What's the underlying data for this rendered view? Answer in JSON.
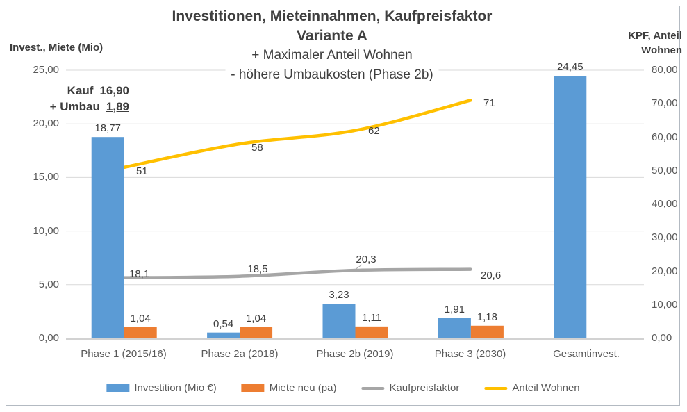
{
  "title": {
    "line1": "Investitionen, Mieteinnahmen, Kaufpreisfaktor",
    "line2": "Variante A",
    "line3": "+ Maximaler Anteil Wohnen",
    "line4": "- höhere Umbaukosten (Phase 2b)"
  },
  "annotation": {
    "line1_label": "Kauf",
    "line1_value": "16,90",
    "line2_label": "+ Umbau",
    "line2_value": "1,89"
  },
  "legend": [
    {
      "label": "Investition (Mio €)",
      "color": "#5b9bd5",
      "shape": "rect"
    },
    {
      "label": "Miete neu (pa)",
      "color": "#ed7d31",
      "shape": "rect"
    },
    {
      "label": "Kaufpreisfaktor",
      "color": "#a6a6a6",
      "shape": "line"
    },
    {
      "label": "Anteil Wohnen",
      "color": "#ffc000",
      "shape": "line"
    }
  ],
  "chart_data": {
    "type": "combo",
    "categories": [
      "Phase 1 (2015/16)",
      "Phase 2a (2018)",
      "Phase 2b (2019)",
      "Phase 3 (2030)",
      "Gesamtinvest."
    ],
    "left_axis": {
      "title": "Invest., Miete (Mio)",
      "min": 0,
      "max": 25,
      "tick_step": 5,
      "ticks": [
        "25,00",
        "20,00",
        "15,00",
        "10,00",
        "5,00",
        "0,00"
      ]
    },
    "right_axis": {
      "title_line1": "KPF, Anteil",
      "title_line2": "Wohnen",
      "min": 0,
      "max": 80,
      "tick_step": 10,
      "ticks": [
        "80,00",
        "70,00",
        "60,00",
        "50,00",
        "40,00",
        "30,00",
        "20,00",
        "10,00",
        "0,00"
      ]
    },
    "series": [
      {
        "name": "Investition (Mio €)",
        "type": "bar",
        "axis": "left",
        "color": "#5b9bd5",
        "values": [
          18.77,
          0.54,
          3.23,
          1.91,
          24.45
        ],
        "labels": [
          "18,77",
          "0,54",
          "3,23",
          "1,91",
          "24,45"
        ]
      },
      {
        "name": "Miete neu (pa)",
        "type": "bar",
        "axis": "left",
        "color": "#ed7d31",
        "values": [
          1.04,
          1.04,
          1.11,
          1.18,
          null
        ],
        "labels": [
          "1,04",
          "1,04",
          "1,11",
          "1,18",
          null
        ]
      },
      {
        "name": "Kaufpreisfaktor",
        "type": "line",
        "axis": "right",
        "color": "#a6a6a6",
        "values": [
          18.1,
          18.5,
          20.3,
          20.6,
          null
        ],
        "labels": [
          "18,1",
          "18,5",
          "20,3",
          "20,6",
          null
        ]
      },
      {
        "name": "Anteil Wohnen",
        "type": "line",
        "axis": "right",
        "color": "#ffc000",
        "values": [
          51,
          58,
          62,
          71,
          null
        ],
        "labels": [
          "51",
          "58",
          "62",
          "71",
          null
        ]
      }
    ],
    "grid": "horizontal",
    "legend_position": "bottom"
  }
}
